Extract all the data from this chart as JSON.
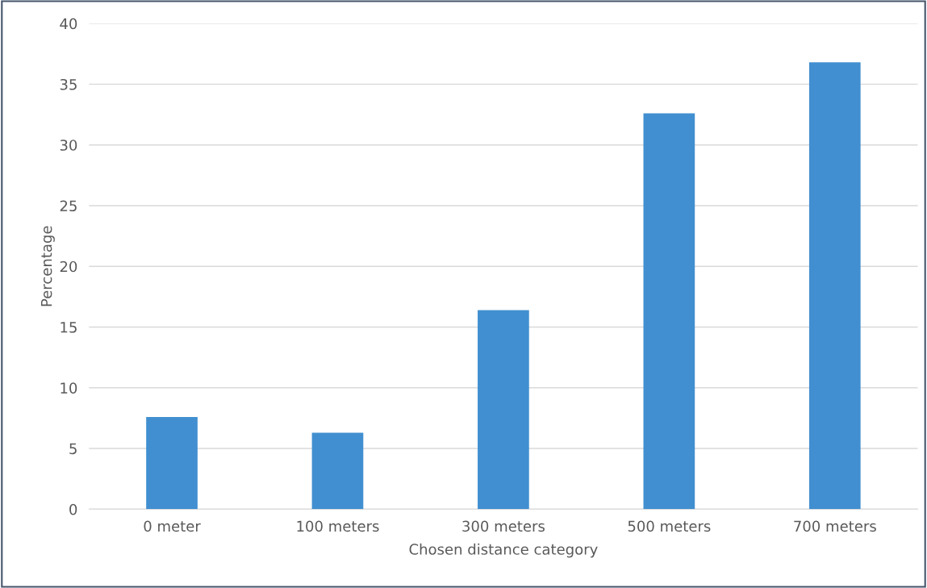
{
  "chart_data": {
    "type": "bar",
    "xlabel": "Chosen distance category",
    "ylabel": "Percentage",
    "categories": [
      "0 meter",
      "100 meters",
      "300 meters",
      "500 meters",
      "700 meters"
    ],
    "values": [
      7.6,
      6.3,
      16.4,
      32.6,
      36.8
    ],
    "color": "#418fd0",
    "ylim": [
      0,
      40
    ],
    "yticks": [
      0,
      5,
      10,
      15,
      20,
      25,
      30,
      35,
      40
    ],
    "grid": "y"
  }
}
